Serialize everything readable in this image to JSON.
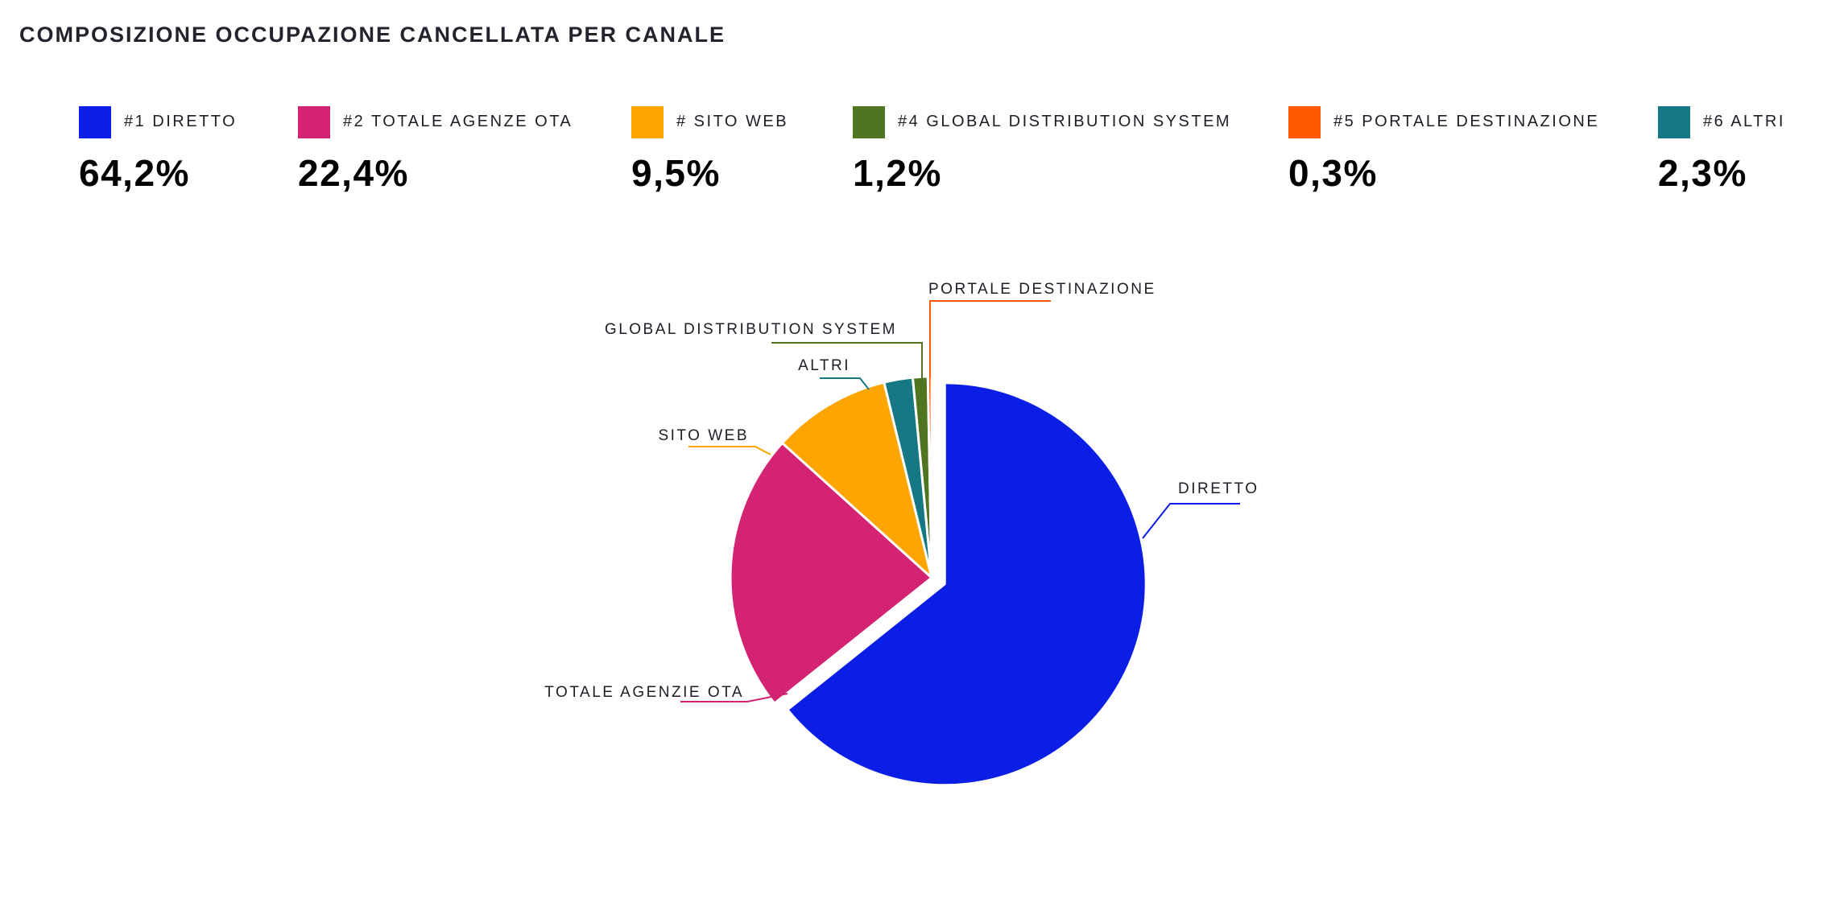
{
  "chart_data": {
    "type": "pie",
    "title": "COMPOSIZIONE OCCUPAZIONE CANCELLATA PER CANALE",
    "slices": [
      {
        "legend_label": "#1 DIRETTO",
        "label": "DIRETTO",
        "value": 64.2,
        "display": "64,2%",
        "color": "#0a1ee6"
      },
      {
        "legend_label": "#2 TOTALE AGENZE OTA",
        "label": "TOTALE AGENZIE OTA",
        "value": 22.4,
        "display": "22,4%",
        "color": "#d42373"
      },
      {
        "legend_label": "# SITO WEB",
        "label": "SITO WEB",
        "value": 9.5,
        "display": "9,5%",
        "color": "#ffa500"
      },
      {
        "legend_label": "#6 ALTRI",
        "label": "ALTRI",
        "value": 2.3,
        "display": "2,3%",
        "color": "#167885"
      },
      {
        "legend_label": "#4 GLOBAL DISTRIBUTION SYSTEM",
        "label": "GLOBAL DISTRIBUTION SYSTEM",
        "value": 1.2,
        "display": "1,2%",
        "color": "#507520"
      },
      {
        "legend_label": "#5 PORTALE DESTINAZIONE",
        "label": "PORTALE DESTINAZIONE",
        "value": 0.3,
        "display": "0,3%",
        "color": "#ff5a00"
      }
    ],
    "legend": [
      {
        "legend_label": "#1 DIRETTO",
        "display": "64,2%",
        "color": "#0a1ee6"
      },
      {
        "legend_label": "#2 TOTALE AGENZE OTA",
        "display": "22,4%",
        "color": "#d42373"
      },
      {
        "legend_label": "# SITO WEB",
        "display": "9,5%",
        "color": "#ffa500"
      },
      {
        "legend_label": "#4 GLOBAL DISTRIBUTION SYSTEM",
        "display": "1,2%",
        "color": "#507520"
      },
      {
        "legend_label": "#5 PORTALE DESTINAZIONE",
        "display": "0,3%",
        "color": "#ff5a00"
      },
      {
        "legend_label": "#6 ALTRI",
        "display": "2,3%",
        "color": "#167885"
      }
    ],
    "legend_placement": "top"
  }
}
